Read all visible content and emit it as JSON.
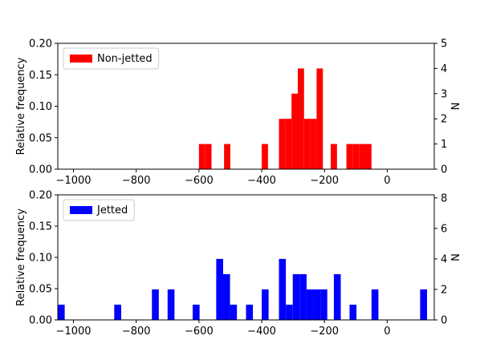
{
  "chart_data": [
    {
      "type": "bar",
      "legend": "Non-jetted",
      "legend_position": "top-left",
      "color": "#ff0000",
      "ylabel_left": "Relative frequency",
      "ylabel_right": "N",
      "xlim": [
        -1050,
        150
      ],
      "ylim": [
        0,
        0.2
      ],
      "ylim_right": [
        0,
        5
      ],
      "bin_width": 20,
      "xticks": [
        "−1000",
        "−800",
        "−600",
        "−400",
        "−200",
        "0"
      ],
      "xtick_values": [
        -1000,
        -800,
        -600,
        -400,
        -200,
        0
      ],
      "yticks_left": [
        "0.00",
        "0.05",
        "0.10",
        "0.15",
        "0.20"
      ],
      "ytick_left_values": [
        0,
        0.05,
        0.1,
        0.15,
        0.2
      ],
      "yticks_right": [
        "0",
        "1",
        "2",
        "3",
        "4",
        "5"
      ],
      "ytick_right_values": [
        0,
        1,
        2,
        3,
        4,
        5
      ],
      "bins": [
        {
          "x": -600,
          "count": 1
        },
        {
          "x": -580,
          "count": 1
        },
        {
          "x": -520,
          "count": 1
        },
        {
          "x": -400,
          "count": 1
        },
        {
          "x": -345,
          "count": 2
        },
        {
          "x": -325,
          "count": 2
        },
        {
          "x": -305,
          "count": 3
        },
        {
          "x": -285,
          "count": 4
        },
        {
          "x": -265,
          "count": 2
        },
        {
          "x": -245,
          "count": 2
        },
        {
          "x": -225,
          "count": 4
        },
        {
          "x": -180,
          "count": 1
        },
        {
          "x": -130,
          "count": 1
        },
        {
          "x": -110,
          "count": 1
        },
        {
          "x": -90,
          "count": 1
        },
        {
          "x": -70,
          "count": 1
        }
      ]
    },
    {
      "type": "bar",
      "legend": "Jetted",
      "legend_position": "top-left",
      "color": "#0000ff",
      "ylabel_left": "Relative frequency",
      "ylabel_right": "N",
      "xlim": [
        -1050,
        150
      ],
      "ylim": [
        0,
        0.2
      ],
      "ylim_right": [
        0,
        8.2
      ],
      "bin_width": 22,
      "xticks": [
        "−1000",
        "−800",
        "−600",
        "−400",
        "−200",
        "0"
      ],
      "xtick_values": [
        -1000,
        -800,
        -600,
        -400,
        -200,
        0
      ],
      "yticks_left": [
        "0.00",
        "0.05",
        "0.10",
        "0.15",
        "0.20"
      ],
      "ytick_left_values": [
        0,
        0.05,
        0.1,
        0.15,
        0.2
      ],
      "yticks_right": [
        "0",
        "2",
        "4",
        "6",
        "8"
      ],
      "ytick_right_values": [
        0,
        2,
        4,
        6,
        8
      ],
      "bins": [
        {
          "x": -1050,
          "count": 1
        },
        {
          "x": -870,
          "count": 1
        },
        {
          "x": -750,
          "count": 2
        },
        {
          "x": -700,
          "count": 2
        },
        {
          "x": -620,
          "count": 1
        },
        {
          "x": -545,
          "count": 4
        },
        {
          "x": -523,
          "count": 3
        },
        {
          "x": -501,
          "count": 1
        },
        {
          "x": -450,
          "count": 1
        },
        {
          "x": -400,
          "count": 2
        },
        {
          "x": -345,
          "count": 4
        },
        {
          "x": -323,
          "count": 1
        },
        {
          "x": -301,
          "count": 3
        },
        {
          "x": -279,
          "count": 3
        },
        {
          "x": -257,
          "count": 2
        },
        {
          "x": -235,
          "count": 2
        },
        {
          "x": -213,
          "count": 2
        },
        {
          "x": -170,
          "count": 3
        },
        {
          "x": -120,
          "count": 1
        },
        {
          "x": -50,
          "count": 2
        },
        {
          "x": 105,
          "count": 2
        }
      ]
    }
  ]
}
